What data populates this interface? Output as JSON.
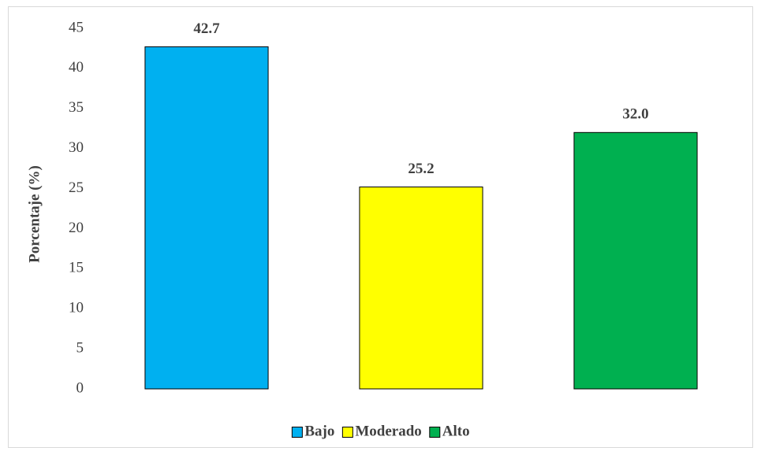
{
  "chart_data": {
    "type": "bar",
    "ylabel": "Porcentaje (%)",
    "series": [
      {
        "name": "Bajo",
        "color": "#00b0f0",
        "values": [
          42.7
        ],
        "value_labels": [
          "42.7"
        ]
      },
      {
        "name": "Moderado",
        "color": "#ffff00",
        "values": [
          25.2
        ],
        "value_labels": [
          "25.2"
        ]
      },
      {
        "name": "Alto",
        "color": "#00b050",
        "values": [
          32.0
        ],
        "value_labels": [
          "32.0"
        ]
      }
    ],
    "ylim": [
      0,
      45
    ],
    "yticks": [
      0,
      5,
      10,
      15,
      20,
      25,
      30,
      35,
      40,
      45
    ],
    "grid": false,
    "legend": "bottom"
  }
}
